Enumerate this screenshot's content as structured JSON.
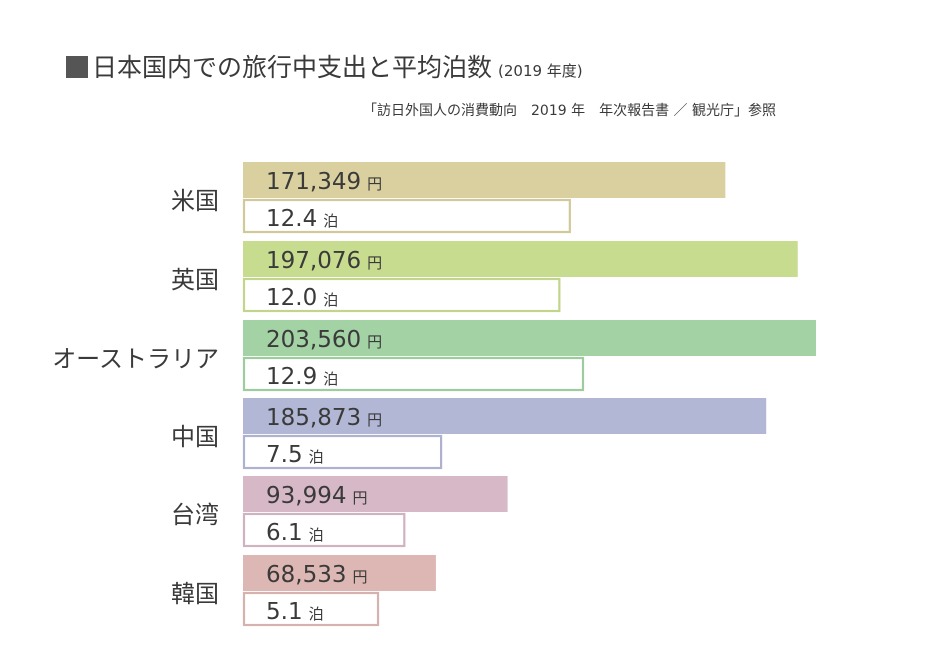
{
  "title": {
    "main": "日本国内での旅行中支出と平均泊数",
    "year": "(2019 年度)"
  },
  "source": "「訪日外国人の消費動向　2019 年　年次報告書 ／ 観光庁」参照",
  "chart_data": {
    "type": "bar",
    "orientation": "horizontal",
    "categories": [
      "米国",
      "英国",
      "オーストラリア",
      "中国",
      "台湾",
      "韓国"
    ],
    "series": [
      {
        "unit": "円",
        "values": [
          171349,
          197076,
          203560,
          185873,
          93994,
          68533
        ]
      },
      {
        "unit": "泊",
        "values": [
          12.4,
          12.0,
          12.9,
          7.5,
          6.1,
          5.1
        ]
      }
    ],
    "value_labels": [
      {
        "spend": "171,349",
        "nights": "12.4"
      },
      {
        "spend": "197,076",
        "nights": "12.0"
      },
      {
        "spend": "203,560",
        "nights": "12.9"
      },
      {
        "spend": "185,873",
        "nights": "7.5"
      },
      {
        "spend": "93,994",
        "nights": "6.1"
      },
      {
        "spend": "68,533",
        "nights": "5.1"
      }
    ],
    "colors": [
      "#d9cf9f",
      "#c7dc8f",
      "#a3d2a4",
      "#b3b7d6",
      "#d6b8c6",
      "#ddb7b3"
    ],
    "grid": false,
    "legend": "none"
  }
}
